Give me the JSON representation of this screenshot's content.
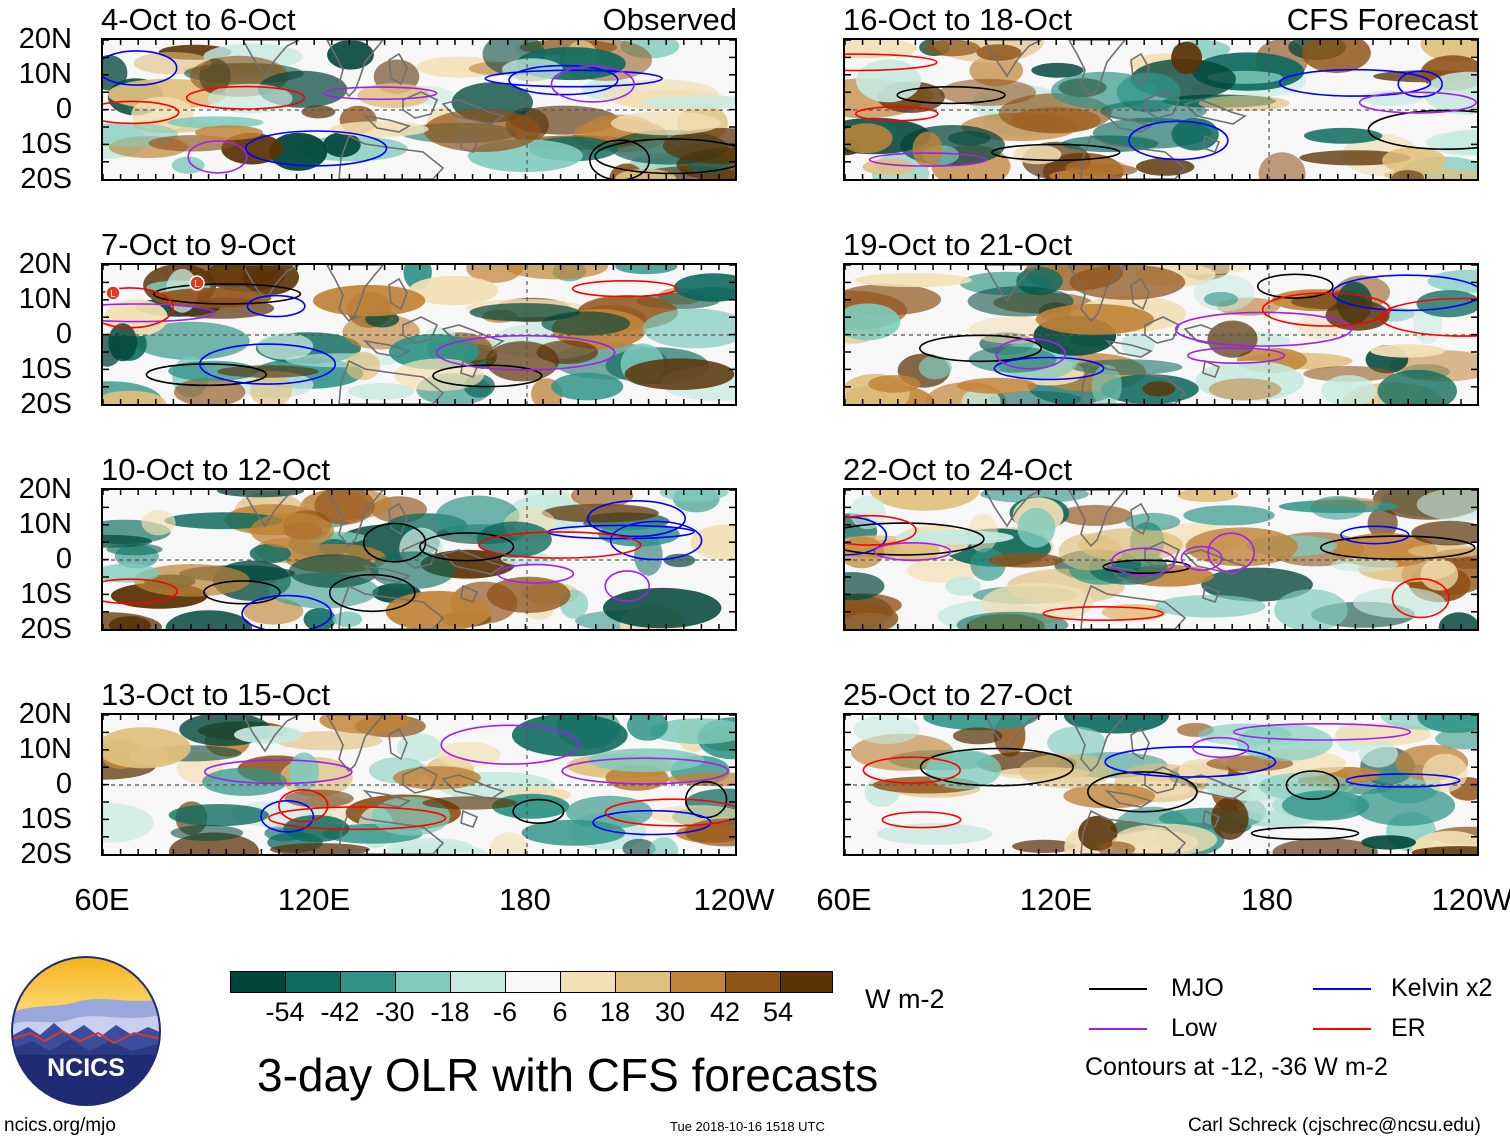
{
  "figure": {
    "title": "3-day OLR with CFS forecasts",
    "left_column_tag": "Observed",
    "right_column_tag": "CFS Forecast"
  },
  "panels": {
    "left": [
      {
        "label": "4-Oct to 6-Oct"
      },
      {
        "label": "7-Oct to 9-Oct"
      },
      {
        "label": "10-Oct to 12-Oct"
      },
      {
        "label": "13-Oct to 15-Oct"
      }
    ],
    "right": [
      {
        "label": "16-Oct to 18-Oct"
      },
      {
        "label": "19-Oct to 21-Oct"
      },
      {
        "label": "22-Oct to 24-Oct"
      },
      {
        "label": "25-Oct to 27-Oct"
      }
    ]
  },
  "axes": {
    "lat_labels": [
      "20N",
      "10N",
      "0",
      "10S",
      "20S"
    ],
    "lon_labels": [
      "60E",
      "120E",
      "180",
      "120W"
    ]
  },
  "colorbar": {
    "labels": [
      "-54",
      "-42",
      "-30",
      "-18",
      "-6",
      "6",
      "18",
      "30",
      "42",
      "54"
    ],
    "units": "W m-2",
    "colors": [
      "#01463a",
      "#0e6b5e",
      "#2f9487",
      "#7fcbbc",
      "#c6e9e0",
      "#f7f7f7",
      "#f2dfb3",
      "#dfbf7d",
      "#c08338",
      "#8f5217",
      "#5b3408"
    ]
  },
  "legend": {
    "items": [
      {
        "label": "MJO",
        "color": "#000000"
      },
      {
        "label": "Kelvin x2",
        "color": "#0000ff"
      },
      {
        "label": "Low",
        "color": "#a020f0"
      },
      {
        "label": "ER",
        "color": "#ff0000"
      }
    ],
    "note": "Contours at -12, -36 W m-2"
  },
  "footer": {
    "site": "ncics.org/mjo",
    "timestamp": "Tue 2018-10-16 1518 UTC",
    "credit": "Carl Schreck (cjschrec@ncsu.edu)",
    "logo_text": "NCICS"
  },
  "mini_markers": {
    "low_symbol": "L"
  }
}
